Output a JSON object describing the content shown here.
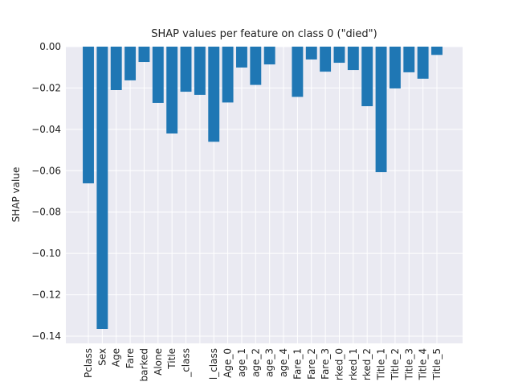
{
  "chart_data": {
    "type": "bar",
    "title": "SHAP values per feature on class 0 (\"died\")",
    "y_label": "SHAP value",
    "categories": [
      "Pclass",
      "Sex",
      "Age",
      "Fare",
      "barked",
      "Alone",
      "Title",
      "_class",
      null,
      "l_class",
      "Age_0",
      "age_1",
      "age_2",
      "age_3",
      "age_4",
      "Fare_1",
      "Fare_2",
      "Fare_3",
      "rked_0",
      "rked_1",
      "rked_2",
      "Title_1",
      "Title_2",
      "Title_3",
      "Title_4",
      "Title_5"
    ],
    "values": [
      -0.0661,
      -0.1365,
      -0.021,
      -0.0163,
      -0.0074,
      -0.0272,
      -0.042,
      -0.0218,
      -0.0233,
      -0.046,
      -0.027,
      -0.0101,
      -0.0185,
      -0.0086,
      0,
      -0.0243,
      -0.0062,
      -0.0121,
      -0.0078,
      -0.0113,
      -0.0288,
      -0.0607,
      -0.0202,
      -0.0124,
      -0.0155,
      -0.004
    ],
    "color": "#1f77b4",
    "ylim": [
      -0.1435,
      0
    ],
    "yticks": [
      {
        "value": 0,
        "label": "0.00"
      },
      {
        "value": -0.02,
        "label": "−0.02"
      },
      {
        "value": -0.04,
        "label": "−0.04"
      },
      {
        "value": -0.06,
        "label": "−0.06"
      },
      {
        "value": -0.08,
        "label": "−0.08"
      },
      {
        "value": -0.1,
        "label": "−0.10"
      },
      {
        "value": -0.12,
        "label": "−0.12"
      },
      {
        "value": -0.14,
        "label": "−0.14"
      }
    ],
    "grid": true
  }
}
